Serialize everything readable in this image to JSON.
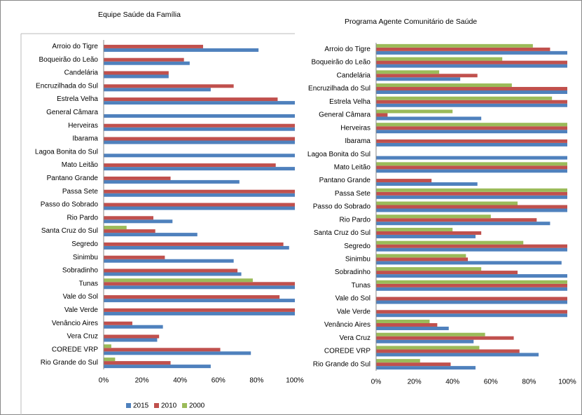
{
  "chart_data": [
    {
      "type": "barh",
      "title": "Equipe Saúde da Família",
      "categories": [
        "Arroio do Tigre",
        "Boqueirão do Leão",
        "Candelária",
        "Encruzilhada do Sul",
        "Estrela Velha",
        "General Câmara",
        "Herveiras",
        "Ibarama",
        "Lagoa Bonita do Sul",
        "Mato Leitão",
        "Pantano Grande",
        "Passa Sete",
        "Passo do Sobrado",
        "Rio Pardo",
        "Santa Cruz do Sul",
        "Segredo",
        "Sinimbu",
        "Sobradinho",
        "Tunas",
        "Vale do Sol",
        "Vale Verde",
        "Venâncio Aires",
        "Vera Cruz",
        "COREDE VRP",
        "Rio Grande do Sul"
      ],
      "series": [
        {
          "name": "2015",
          "color": "#4f81bd",
          "values": [
            81,
            45,
            34,
            56,
            100,
            100,
            100,
            100,
            100,
            100,
            71,
            100,
            100,
            36,
            49,
            97,
            68,
            72,
            100,
            100,
            100,
            31,
            28,
            77,
            56
          ]
        },
        {
          "name": "2010",
          "color": "#c0504d",
          "values": [
            52,
            42,
            34,
            68,
            91,
            0,
            100,
            100,
            0,
            90,
            35,
            100,
            100,
            26,
            27,
            94,
            32,
            70,
            100,
            92,
            100,
            15,
            29,
            61,
            35
          ]
        },
        {
          "name": "2000",
          "color": "#9bbb59",
          "values": [
            0,
            0,
            0,
            0,
            0,
            0,
            0,
            0,
            0,
            0,
            0,
            0,
            0,
            0,
            12,
            0,
            0,
            0,
            78,
            0,
            0,
            0,
            0,
            4,
            6
          ]
        }
      ],
      "xlim": [
        0,
        100
      ],
      "xticks": [
        {
          "value": 0,
          "label": "0%"
        },
        {
          "value": 20,
          "label": "20%"
        },
        {
          "value": 40,
          "label": "40%"
        },
        {
          "value": 60,
          "label": "60%"
        },
        {
          "value": 80,
          "label": "80%"
        },
        {
          "value": 100,
          "label": "100%"
        }
      ],
      "grid": false,
      "legend": "bottom"
    },
    {
      "type": "barh",
      "title": "Programa Agente Comunitário de Saúde",
      "categories": [
        "Arroio do Tigre",
        "Boqueirão do Leão",
        "Candelária",
        "Encruzilhada do Sul",
        "Estrela Velha",
        "General Câmara",
        "Herveiras",
        "Ibarama",
        "Lagoa Bonita do Sul",
        "Mato Leitão",
        "Pantano Grande",
        "Passa Sete",
        "Passo do Sobrado",
        "Rio Pardo",
        "Santa Cruz do Sul",
        "Segredo",
        "Sinimbu",
        "Sobradinho",
        "Tunas",
        "Vale do Sol",
        "Vale Verde",
        "Venâncio Aires",
        "Vera Cruz",
        "COREDE VRP",
        "Rio Grande do Sul"
      ],
      "series": [
        {
          "name": "2015",
          "color": "#4f81bd",
          "values": [
            100,
            100,
            44,
            100,
            100,
            55,
            100,
            100,
            100,
            100,
            53,
            100,
            100,
            91,
            52,
            100,
            97,
            100,
            100,
            100,
            100,
            38,
            51,
            85,
            52
          ]
        },
        {
          "name": "2010",
          "color": "#c0504d",
          "values": [
            91,
            100,
            53,
            100,
            100,
            6,
            100,
            100,
            0,
            100,
            29,
            100,
            100,
            84,
            55,
            100,
            48,
            74,
            100,
            100,
            100,
            32,
            72,
            75,
            39
          ]
        },
        {
          "name": "2000",
          "color": "#9bbb59",
          "values": [
            82,
            66,
            33,
            71,
            92,
            40,
            100,
            0,
            0,
            100,
            0,
            100,
            74,
            60,
            40,
            77,
            47,
            55,
            100,
            0,
            0,
            28,
            57,
            54,
            23
          ]
        }
      ],
      "xlim": [
        0,
        100
      ],
      "xticks": [
        {
          "value": 0,
          "label": "0%"
        },
        {
          "value": 20,
          "label": "20%"
        },
        {
          "value": 40,
          "label": "40%"
        },
        {
          "value": 60,
          "label": "60%"
        },
        {
          "value": 80,
          "label": "80%"
        },
        {
          "value": 100,
          "label": "100%"
        }
      ],
      "grid": false,
      "legend": "bottom"
    }
  ]
}
